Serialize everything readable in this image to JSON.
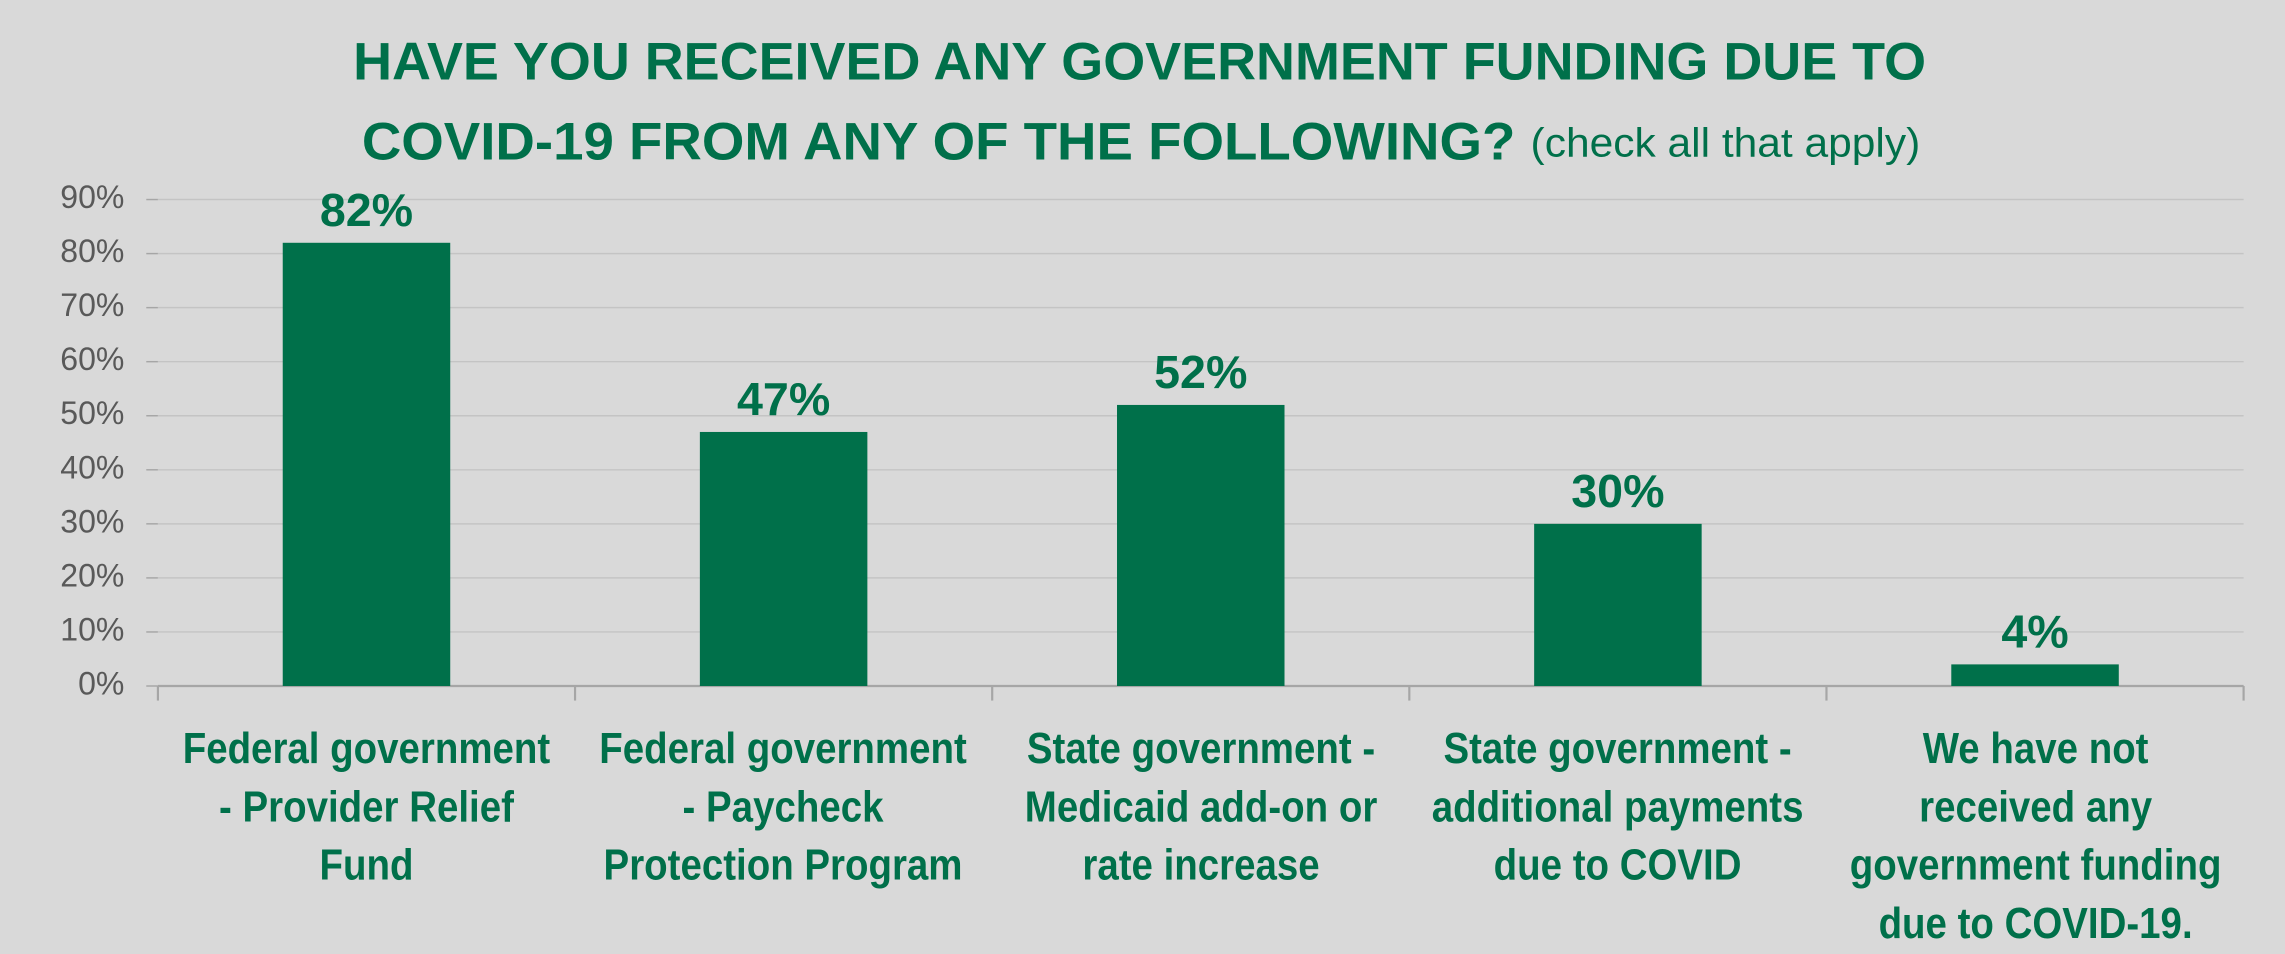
{
  "chart_data": {
    "type": "bar",
    "title": [
      "HAVE YOU RECEIVED ANY GOVERNMENT FUNDING DUE TO",
      "COVID-19 FROM ANY OF THE FOLLOWING?"
    ],
    "subtitle": "(check all that apply)",
    "categories": [
      "Federal government\n- Provider Relief\nFund",
      "Federal government\n- Paycheck\nProtection Program",
      "State government -\nMedicaid add-on or\nrate increase",
      "State government -\nadditional payments\ndue to COVID",
      "We have not\nreceived any\ngovernment funding\ndue to COVID-19."
    ],
    "values": [
      82,
      47,
      52,
      30,
      4
    ],
    "value_labels": [
      "82%",
      "47%",
      "52%",
      "30%",
      "4%"
    ],
    "color": "#00704a",
    "ylim": [
      0,
      90
    ],
    "yticks": [
      {
        "value": 0,
        "label": "0%"
      },
      {
        "value": 10,
        "label": "10%"
      },
      {
        "value": 20,
        "label": "20%"
      },
      {
        "value": 30,
        "label": "30%"
      },
      {
        "value": 40,
        "label": "40%"
      },
      {
        "value": 50,
        "label": "50%"
      },
      {
        "value": 60,
        "label": "60%"
      },
      {
        "value": 70,
        "label": "70%"
      },
      {
        "value": 80,
        "label": "80%"
      },
      {
        "value": 90,
        "label": "90%"
      }
    ],
    "grid": true
  }
}
